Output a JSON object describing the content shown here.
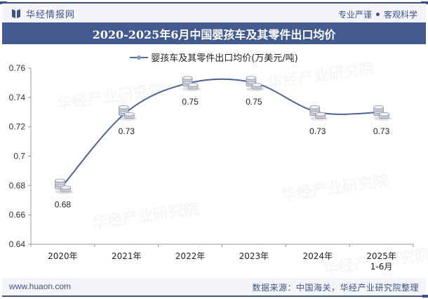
{
  "header": {
    "brand_name": "华经情报网",
    "motto_left": "专业严谨",
    "motto_right": "客观科学",
    "brand_color": "#3e5283"
  },
  "title": "2020-2025年6月中国婴孩车及其零件出口均价",
  "legend": {
    "label": "婴孩车及其零件出口均价(万美元/吨)"
  },
  "footer": {
    "url": "www.huaon.com",
    "source": "数据来源：中国海关，华经产业研究院整理"
  },
  "watermark": {
    "text": "华经产业研究院",
    "url": "www.huaon.com"
  },
  "chart_data": {
    "type": "line",
    "title": "2020-2025年6月中国婴孩车及其零件出口均价",
    "categories": [
      "2020年",
      "2021年",
      "2022年",
      "2023年",
      "2024年",
      "2025年 1-6月"
    ],
    "series": [
      {
        "name": "婴孩车及其零件出口均价(万美元/吨)",
        "values": [
          0.68,
          0.73,
          0.75,
          0.75,
          0.73,
          0.73
        ],
        "color": "#4e6494",
        "smooth": true,
        "marker": "coin-stack"
      }
    ],
    "data_labels": [
      "0.68",
      "0.73",
      "0.75",
      "0.75",
      "0.73",
      "0.73"
    ],
    "xlabel": "",
    "ylabel": "",
    "ylim": [
      0.64,
      0.76
    ],
    "yticks": [
      "0.64",
      "0.66",
      "0.68",
      "0.7",
      "0.72",
      "0.74",
      "0.76"
    ],
    "grid": false,
    "legend_position": "top"
  }
}
